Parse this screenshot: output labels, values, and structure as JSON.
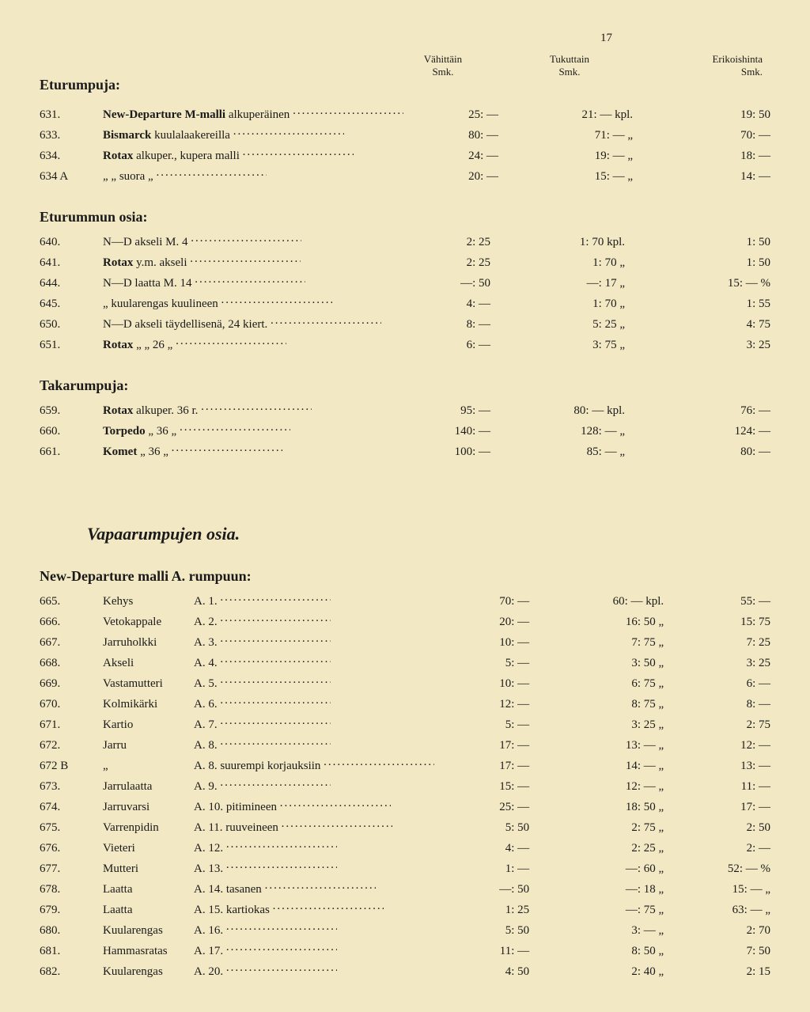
{
  "page_number": "17",
  "background_color": "#f3e8c4",
  "text_color": "#1a1a1a",
  "font_family": "Times New Roman",
  "headers": {
    "col1_a": "Vähittäin",
    "col1_b": "Smk.",
    "col2_a": "Tukuttain",
    "col2_b": "Smk.",
    "col3_a": "Erikoishinta",
    "col3_b": "Smk."
  },
  "sections": [
    {
      "title": "Eturumpuja:",
      "show_headers": true,
      "rows": [
        {
          "idx": "631.",
          "desc_strong": "New-Departure M-malli",
          "desc_rest": " alkuperäinen",
          "p1": "25: —",
          "p2": "21: — kpl.",
          "p3": "19: 50"
        },
        {
          "idx": "633.",
          "desc_strong": "Bismarck",
          "desc_rest": " kuulalaakereilla",
          "p1": "80: —",
          "p2": "71: —  „",
          "p3": "70: —"
        },
        {
          "idx": "634.",
          "desc_strong": "Rotax",
          "desc_rest": " alkuper., kupera malli",
          "p1": "24: —",
          "p2": "19: —  „",
          "p3": "18: —"
        },
        {
          "idx": "634 A",
          "desc_strong": "",
          "desc_rest": "   „        „      suora      „",
          "p1": "20: —",
          "p2": "15: —  „",
          "p3": "14: —"
        }
      ]
    },
    {
      "title": "Eturummun osia:",
      "rows": [
        {
          "idx": "640.",
          "desc_strong": "",
          "desc_rest": "N—D akseli M. 4",
          "p1": "2: 25",
          "p2": "1: 70 kpl.",
          "p3": "1: 50"
        },
        {
          "idx": "641.",
          "desc_strong": "Rotax",
          "desc_rest": " y.m. akseli",
          "p1": "2: 25",
          "p2": "1: 70  „",
          "p3": "1: 50"
        },
        {
          "idx": "644.",
          "desc_strong": "",
          "desc_rest": "N—D laatta M. 14",
          "p1": "—: 50",
          "p2": "—: 17  „",
          "p3": "15: — %"
        },
        {
          "idx": "645.",
          "desc_strong": "",
          "desc_rest": "   „    kuularengas kuulineen",
          "p1": "4: —",
          "p2": "1: 70  „",
          "p3": "1: 55"
        },
        {
          "idx": "650.",
          "desc_strong": "",
          "desc_rest": "N—D akseli täydellisenä, 24 kiert.",
          "p1": "8: —",
          "p2": "5: 25  „",
          "p3": "4: 75"
        },
        {
          "idx": "651.",
          "desc_strong": "Rotax",
          "desc_rest": "    „           „        26   „",
          "p1": "6: —",
          "p2": "3: 75  „",
          "p3": "3: 25"
        }
      ]
    },
    {
      "title": "Takarumpuja:",
      "rows": [
        {
          "idx": "659.",
          "desc_strong": "Rotax",
          "desc_rest": " alkuper. 36 r.",
          "p1": "95: —",
          "p2": "80: — kpl.",
          "p3": "76: —"
        },
        {
          "idx": "660.",
          "desc_strong": "Torpedo",
          "desc_rest": "   „     36 „",
          "p1": "140: —",
          "p2": "128: —  „",
          "p3": "124: —"
        },
        {
          "idx": "661.",
          "desc_strong": "Komet",
          "desc_rest": "    „     36 „",
          "p1": "100: —",
          "p2": "85: —  „",
          "p3": "80: —"
        }
      ]
    }
  ],
  "vapaa_title": "Vapaarumpujen osia.",
  "nd_title": "New-Departure malli A. rumpuun:",
  "nd_rows": [
    {
      "idx": "665.",
      "name": "Kehys",
      "code": "A.  1.",
      "p1": "70: —",
      "p2": "60: — kpl.",
      "p3": "55: —"
    },
    {
      "idx": "666.",
      "name": "Vetokappale",
      "code": "A.  2.",
      "p1": "20: —",
      "p2": "16: 50  „",
      "p3": "15: 75"
    },
    {
      "idx": "667.",
      "name": "Jarruholkki",
      "code": "A.  3.",
      "p1": "10: —",
      "p2": "7: 75  „",
      "p3": "7: 25"
    },
    {
      "idx": "668.",
      "name": "Akseli",
      "code": "A.  4.",
      "p1": "5: —",
      "p2": "3: 50  „",
      "p3": "3: 25"
    },
    {
      "idx": "669.",
      "name": "Vastamutteri",
      "code": "A.  5.",
      "p1": "10: —",
      "p2": "6: 75  „",
      "p3": "6: —"
    },
    {
      "idx": "670.",
      "name": "Kolmikärki",
      "code": "A.  6.",
      "p1": "12: —",
      "p2": "8: 75  „",
      "p3": "8: —"
    },
    {
      "idx": "671.",
      "name": "Kartio",
      "code": "A.  7.",
      "p1": "5: —",
      "p2": "3: 25  „",
      "p3": "2: 75"
    },
    {
      "idx": "672.",
      "name": "Jarru",
      "code": "A.  8.",
      "p1": "17: —",
      "p2": "13: —  „",
      "p3": "12: —"
    },
    {
      "idx": "672 B",
      "name": "„",
      "code": "A.  8. suurempi korjauksiin",
      "p1": "17: —",
      "p2": "14: —  „",
      "p3": "13: —"
    },
    {
      "idx": "673.",
      "name": "Jarrulaatta",
      "code": "A.  9.",
      "p1": "15: —",
      "p2": "12: —  „",
      "p3": "11: —"
    },
    {
      "idx": "674.",
      "name": "Jarruvarsi",
      "code": "A. 10. pitimineen",
      "p1": "25: —",
      "p2": "18: 50  „",
      "p3": "17: —"
    },
    {
      "idx": "675.",
      "name": "Varrenpidin",
      "code": "A. 11. ruuveineen",
      "p1": "5: 50",
      "p2": "2: 75  „",
      "p3": "2: 50"
    },
    {
      "idx": "676.",
      "name": "Vieteri",
      "code": "A. 12.",
      "p1": "4: —",
      "p2": "2: 25  „",
      "p3": "2: —"
    },
    {
      "idx": "677.",
      "name": "Mutteri",
      "code": "A. 13.",
      "p1": "1: —",
      "p2": "—: 60  „",
      "p3": "52: — %"
    },
    {
      "idx": "678.",
      "name": "Laatta",
      "code": "A. 14. tasanen",
      "p1": "—: 50",
      "p2": "—: 18  „",
      "p3": "15: —  „"
    },
    {
      "idx": "679.",
      "name": "Laatta",
      "code": "A. 15. kartiokas",
      "p1": "1: 25",
      "p2": "—: 75  „",
      "p3": "63: —  „"
    },
    {
      "idx": "680.",
      "name": "Kuularengas",
      "code": "A. 16.",
      "p1": "5: 50",
      "p2": "3: —  „",
      "p3": "2: 70"
    },
    {
      "idx": "681.",
      "name": "Hammasratas",
      "code": "A. 17.",
      "p1": "11: —",
      "p2": "8: 50  „",
      "p3": "7: 50"
    },
    {
      "idx": "682.",
      "name": "Kuularengas",
      "code": "A. 20.",
      "p1": "4: 50",
      "p2": "2: 40  „",
      "p3": "2: 15"
    }
  ]
}
